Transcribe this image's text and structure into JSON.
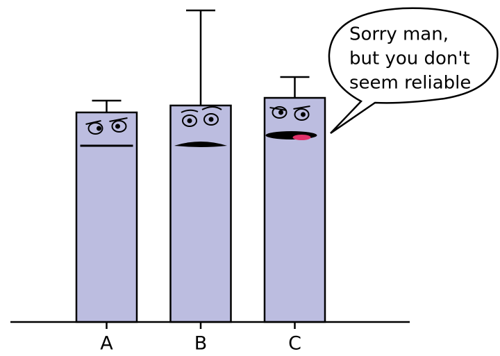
{
  "chart_data": {
    "type": "bar",
    "categories": [
      "A",
      "B",
      "C"
    ],
    "values": [
      302,
      312,
      323
    ],
    "errors": [
      17,
      137,
      30
    ],
    "color": "#bcbde0",
    "ylim": [
      0,
      449
    ],
    "annotation": {
      "lines": [
        "Sorry man,",
        "but you don't",
        "seem reliable"
      ]
    }
  }
}
